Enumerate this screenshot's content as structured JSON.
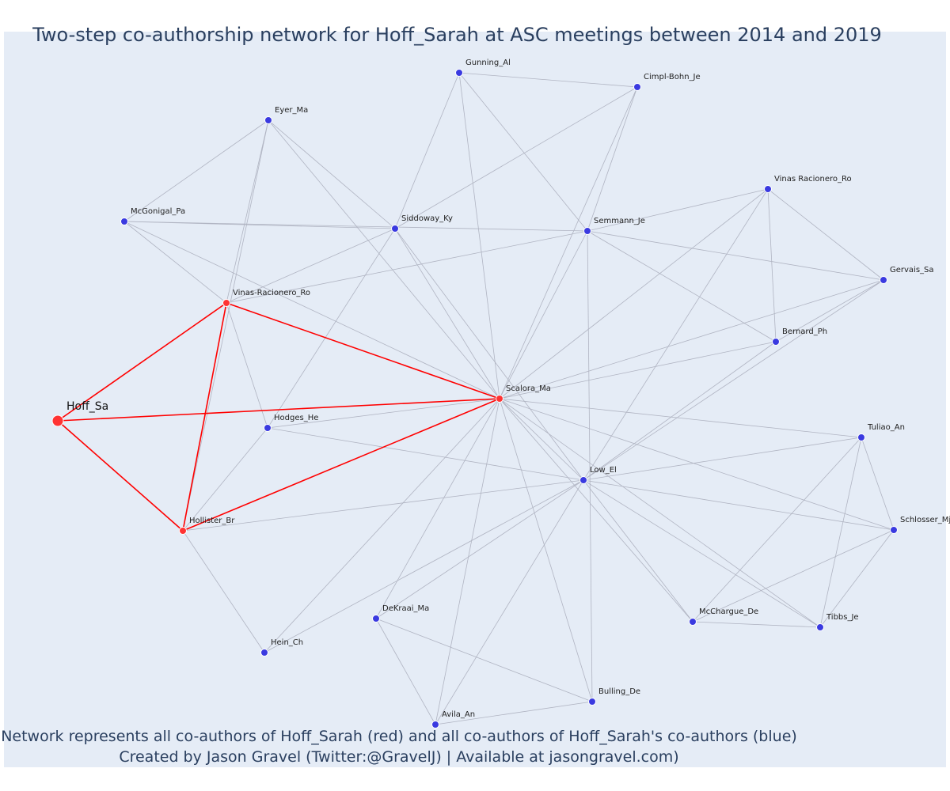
{
  "title": "Two-step co-authorship network for Hoff_Sarah at ASC meetings between 2014 and 2019",
  "caption": {
    "line1": "Network represents all co-authors of Hoff_Sarah (red) and all co-authors of Hoff_Sarah's co-authors (blue)",
    "line2": "Created by Jason Gravel (Twitter:@GravelJ) | Available at jasongravel.com)"
  },
  "colors": {
    "background": "#e5ecf6",
    "focal_node": "#ff3333",
    "coauthor_node": "#ff3333",
    "second_step_node": "#3a3ae0",
    "focal_edge": "#ff0000",
    "other_edge": "#b0b4c2",
    "title_text": "#2a3f5f"
  },
  "network": {
    "nodes": [
      {
        "id": "Hoff_Sa",
        "group": "focal"
      },
      {
        "id": "Vinas-Racionero_Ro",
        "group": "coauthor"
      },
      {
        "id": "Hollister_Br",
        "group": "coauthor"
      },
      {
        "id": "Scalora_Ma",
        "group": "coauthor"
      },
      {
        "id": "Gunning_Al",
        "group": "second"
      },
      {
        "id": "Cimpl-Bohn_Je",
        "group": "second"
      },
      {
        "id": "Eyer_Ma",
        "group": "second"
      },
      {
        "id": "Vinas Racionero_Ro",
        "group": "second"
      },
      {
        "id": "McGonigal_Pa",
        "group": "second"
      },
      {
        "id": "Siddoway_Ky",
        "group": "second"
      },
      {
        "id": "Semmann_Je",
        "group": "second"
      },
      {
        "id": "Gervais_Sa",
        "group": "second"
      },
      {
        "id": "Bernard_Ph",
        "group": "second"
      },
      {
        "id": "Hodges_He",
        "group": "second"
      },
      {
        "id": "Tuliao_An",
        "group": "second"
      },
      {
        "id": "Low_El",
        "group": "second"
      },
      {
        "id": "Schlosser_Mj",
        "group": "second"
      },
      {
        "id": "DeKraai_Ma",
        "group": "second"
      },
      {
        "id": "McChargue_De",
        "group": "second"
      },
      {
        "id": "Tibbs_Je",
        "group": "second"
      },
      {
        "id": "Hein_Ch",
        "group": "second"
      },
      {
        "id": "Bulling_De",
        "group": "second"
      },
      {
        "id": "Avila_An",
        "group": "second"
      }
    ],
    "edges": [
      [
        "Hoff_Sa",
        "Vinas-Racionero_Ro"
      ],
      [
        "Hoff_Sa",
        "Scalora_Ma"
      ],
      [
        "Hoff_Sa",
        "Hollister_Br"
      ],
      [
        "Vinas-Racionero_Ro",
        "Scalora_Ma"
      ],
      [
        "Vinas-Racionero_Ro",
        "Hollister_Br"
      ],
      [
        "Hollister_Br",
        "Scalora_Ma"
      ],
      [
        "Gunning_Al",
        "Cimpl-Bohn_Je"
      ],
      [
        "Gunning_Al",
        "Siddoway_Ky"
      ],
      [
        "Gunning_Al",
        "Semmann_Je"
      ],
      [
        "Gunning_Al",
        "Scalora_Ma"
      ],
      [
        "Cimpl-Bohn_Je",
        "Siddoway_Ky"
      ],
      [
        "Cimpl-Bohn_Je",
        "Semmann_Je"
      ],
      [
        "Cimpl-Bohn_Je",
        "Scalora_Ma"
      ],
      [
        "Eyer_Ma",
        "McGonigal_Pa"
      ],
      [
        "Eyer_Ma",
        "Siddoway_Ky"
      ],
      [
        "Eyer_Ma",
        "Vinas-Racionero_Ro"
      ],
      [
        "Eyer_Ma",
        "Scalora_Ma"
      ],
      [
        "Eyer_Ma",
        "Hollister_Br"
      ],
      [
        "McGonigal_Pa",
        "Siddoway_Ky"
      ],
      [
        "McGonigal_Pa",
        "Semmann_Je"
      ],
      [
        "McGonigal_Pa",
        "Vinas-Racionero_Ro"
      ],
      [
        "McGonigal_Pa",
        "Scalora_Ma"
      ],
      [
        "Siddoway_Ky",
        "Vinas-Racionero_Ro"
      ],
      [
        "Siddoway_Ky",
        "Scalora_Ma"
      ],
      [
        "Siddoway_Ky",
        "Hodges_He"
      ],
      [
        "Siddoway_Ky",
        "Low_El"
      ],
      [
        "Semmann_Je",
        "Vinas-Racionero_Ro"
      ],
      [
        "Semmann_Je",
        "Vinas Racionero_Ro"
      ],
      [
        "Semmann_Je",
        "Gervais_Sa"
      ],
      [
        "Semmann_Je",
        "Bernard_Ph"
      ],
      [
        "Semmann_Je",
        "Scalora_Ma"
      ],
      [
        "Semmann_Je",
        "Bulling_De"
      ],
      [
        "Vinas Racionero_Ro",
        "Gervais_Sa"
      ],
      [
        "Vinas Racionero_Ro",
        "Bernard_Ph"
      ],
      [
        "Vinas Racionero_Ro",
        "Scalora_Ma"
      ],
      [
        "Vinas Racionero_Ro",
        "Low_El"
      ],
      [
        "Gervais_Sa",
        "Bernard_Ph"
      ],
      [
        "Gervais_Sa",
        "Scalora_Ma"
      ],
      [
        "Gervais_Sa",
        "Low_El"
      ],
      [
        "Bernard_Ph",
        "Scalora_Ma"
      ],
      [
        "Bernard_Ph",
        "Low_El"
      ],
      [
        "Hodges_He",
        "Vinas-Racionero_Ro"
      ],
      [
        "Hodges_He",
        "Hollister_Br"
      ],
      [
        "Hodges_He",
        "Scalora_Ma"
      ],
      [
        "Hodges_He",
        "Low_El"
      ],
      [
        "Scalora_Ma",
        "Low_El"
      ],
      [
        "Scalora_Ma",
        "Tuliao_An"
      ],
      [
        "Scalora_Ma",
        "Schlosser_Mj"
      ],
      [
        "Scalora_Ma",
        "McChargue_De"
      ],
      [
        "Scalora_Ma",
        "Tibbs_Je"
      ],
      [
        "Scalora_Ma",
        "DeKraai_Ma"
      ],
      [
        "Scalora_Ma",
        "Avila_An"
      ],
      [
        "Scalora_Ma",
        "Bulling_De"
      ],
      [
        "Scalora_Ma",
        "Hein_Ch"
      ],
      [
        "Hollister_Br",
        "Low_El"
      ],
      [
        "Hollister_Br",
        "Hein_Ch"
      ],
      [
        "Low_El",
        "Tuliao_An"
      ],
      [
        "Low_El",
        "Schlosser_Mj"
      ],
      [
        "Low_El",
        "McChargue_De"
      ],
      [
        "Low_El",
        "Tibbs_Je"
      ],
      [
        "Low_El",
        "DeKraai_Ma"
      ],
      [
        "Low_El",
        "Avila_An"
      ],
      [
        "Low_El",
        "Hein_Ch"
      ],
      [
        "Tuliao_An",
        "Schlosser_Mj"
      ],
      [
        "Tuliao_An",
        "McChargue_De"
      ],
      [
        "Tuliao_An",
        "Tibbs_Je"
      ],
      [
        "Schlosser_Mj",
        "McChargue_De"
      ],
      [
        "Schlosser_Mj",
        "Tibbs_Je"
      ],
      [
        "McChargue_De",
        "Tibbs_Je"
      ],
      [
        "DeKraai_Ma",
        "Avila_An"
      ],
      [
        "DeKraai_Ma",
        "Bulling_De"
      ],
      [
        "Avila_An",
        "Bulling_De"
      ]
    ]
  }
}
